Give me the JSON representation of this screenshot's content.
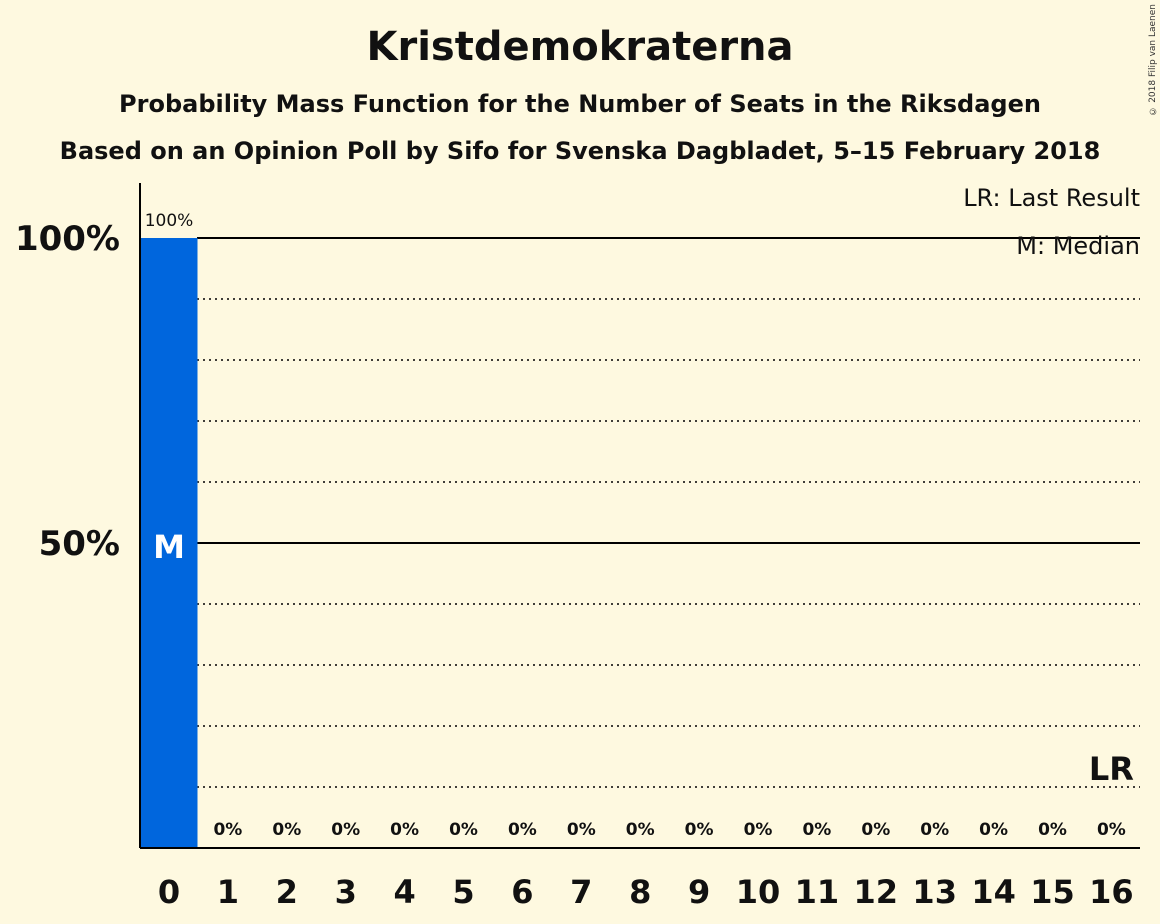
{
  "header": {
    "title": "Kristdemokraterna",
    "subtitle1": "Probability Mass Function for the Number of Seats in the Riksdagen",
    "subtitle2": "Based on an Opinion Poll by Sifo for Svenska Dagbladet, 5–15 February 2018",
    "copyright": "© 2018 Filip van Laenen"
  },
  "legend": {
    "last_result": "LR: Last Result",
    "median": "M: Median"
  },
  "chart_data": {
    "type": "bar",
    "categories": [
      "0",
      "1",
      "2",
      "3",
      "4",
      "5",
      "6",
      "7",
      "8",
      "9",
      "10",
      "11",
      "12",
      "13",
      "14",
      "15",
      "16"
    ],
    "values": [
      100,
      0,
      0,
      0,
      0,
      0,
      0,
      0,
      0,
      0,
      0,
      0,
      0,
      0,
      0,
      0,
      0
    ],
    "data_labels": [
      "100%",
      "0%",
      "0%",
      "0%",
      "0%",
      "0%",
      "0%",
      "0%",
      "0%",
      "0%",
      "0%",
      "0%",
      "0%",
      "0%",
      "0%",
      "0%",
      "0%"
    ],
    "y_ticks": [
      {
        "value": 50,
        "label": "50%"
      },
      {
        "value": 100,
        "label": "100%"
      }
    ],
    "ylim": [
      0,
      109
    ],
    "median_seat": 0,
    "median_label": "M",
    "last_result_seat": 16,
    "last_result_label": "LR",
    "colors": {
      "bar": "#0066dd",
      "axis": "#000000",
      "background": "#fef9e0"
    }
  }
}
